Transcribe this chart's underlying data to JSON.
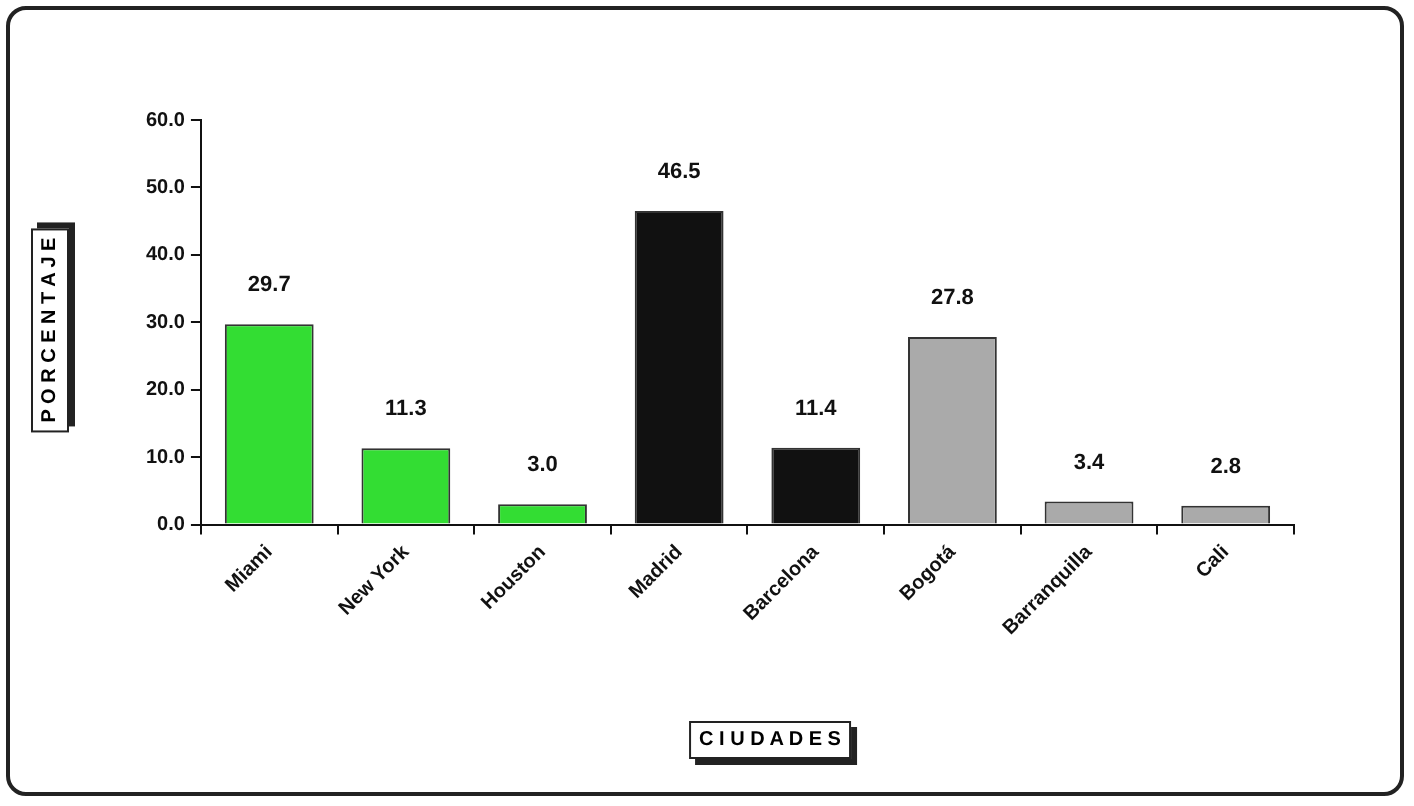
{
  "chart_data": {
    "type": "bar",
    "xlabel": "C I U D A D E S",
    "ylabel": "P O R C E N T A J E",
    "categories": [
      "Miami",
      "New York",
      "Houston",
      "Madrid",
      "Barcelona",
      "Bogotá",
      "Barranquilla",
      "Cali"
    ],
    "values": [
      29.7,
      11.3,
      3.0,
      46.5,
      11.4,
      27.8,
      3.4,
      2.8
    ],
    "value_labels": [
      "29.7",
      "11.3",
      "3.0",
      "46.5",
      "11.4",
      "27.8",
      "3.4",
      "2.8"
    ],
    "colors": [
      "#33dd33",
      "#33dd33",
      "#33dd33",
      "#111111",
      "#111111",
      "#aaaaaa",
      "#aaaaaa",
      "#aaaaaa"
    ],
    "ylim": [
      0,
      60
    ],
    "yticks": [
      {
        "value": 0,
        "label": "0.0"
      },
      {
        "value": 10,
        "label": "10.0"
      },
      {
        "value": 20,
        "label": "20.0"
      },
      {
        "value": 30,
        "label": "30.0"
      },
      {
        "value": 40,
        "label": "40.0"
      },
      {
        "value": 50,
        "label": "50.0"
      },
      {
        "value": 60,
        "label": "60.0"
      }
    ],
    "grid": false,
    "legend": false
  }
}
